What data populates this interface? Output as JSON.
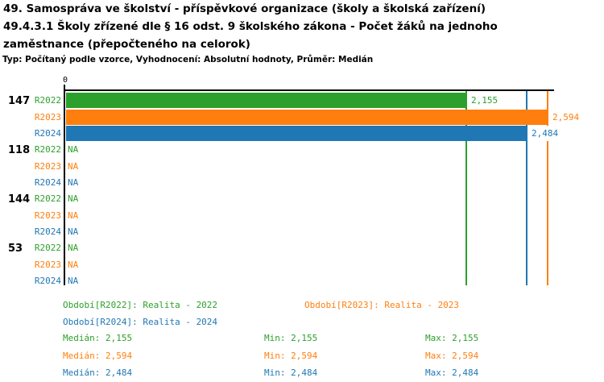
{
  "chart_data": {
    "type": "bar",
    "orientation": "horizontal",
    "title_lines": [
      "49. Samospráva ve školství - příspěvkové organizace (školy a školská zařízení)",
      "49.4.3.1 Školy zřízené dle § 16 odst. 9 školského zákona - Počet žáků na jednoho",
      "zaměstnance (přepočteného na celorok)"
    ],
    "subtitle": "Typ: Počítaný podle vzorce, Vyhodnocení: Absolutní hodnoty, Průměr: Medián",
    "categories": [
      "147",
      "118",
      "144",
      "53"
    ],
    "series": [
      {
        "id": "R2022",
        "label": "R2022",
        "color": "#2ca02c",
        "values": [
          2.155,
          null,
          null,
          null
        ],
        "value_labels": [
          "2,155",
          "NA",
          "NA",
          "NA"
        ],
        "median": 2.155,
        "min": 2.155,
        "max": 2.155
      },
      {
        "id": "R2023",
        "label": "R2023",
        "color": "#ff7f0e",
        "values": [
          2.594,
          null,
          null,
          null
        ],
        "value_labels": [
          "2,594",
          "NA",
          "NA",
          "NA"
        ],
        "median": 2.594,
        "min": 2.594,
        "max": 2.594
      },
      {
        "id": "R2024",
        "label": "R2024",
        "color": "#1f77b4",
        "values": [
          2.484,
          null,
          null,
          null
        ],
        "value_labels": [
          "2,484",
          "NA",
          "NA",
          "NA"
        ],
        "median": 2.484,
        "min": 2.484,
        "max": 2.484
      }
    ],
    "na_text": "NA",
    "axis": {
      "origin_label": "0",
      "xlim": [
        0,
        2.63
      ],
      "grid": false
    },
    "legend_position": "bottom"
  },
  "footer": {
    "legend": [
      {
        "series": "R2022",
        "text": "Období[R2022]: Realita - 2022"
      },
      {
        "series": "R2023",
        "text": "Období[R2023]: Realita - 2023"
      },
      {
        "series": "R2024",
        "text": "Období[R2024]: Realita - 2024"
      }
    ],
    "stats": [
      {
        "series": "R2022",
        "median": "Medián: 2,155",
        "min": "Min: 2,155",
        "max": "Max: 2,155"
      },
      {
        "series": "R2023",
        "median": "Medián: 2,594",
        "min": "Min: 2,594",
        "max": "Max: 2,594"
      },
      {
        "series": "R2024",
        "median": "Medián: 2,484",
        "min": "Min: 2,484",
        "max": "Max: 2,484"
      }
    ]
  },
  "colors": {
    "axis": "#000000",
    "background": "#ffffff"
  }
}
